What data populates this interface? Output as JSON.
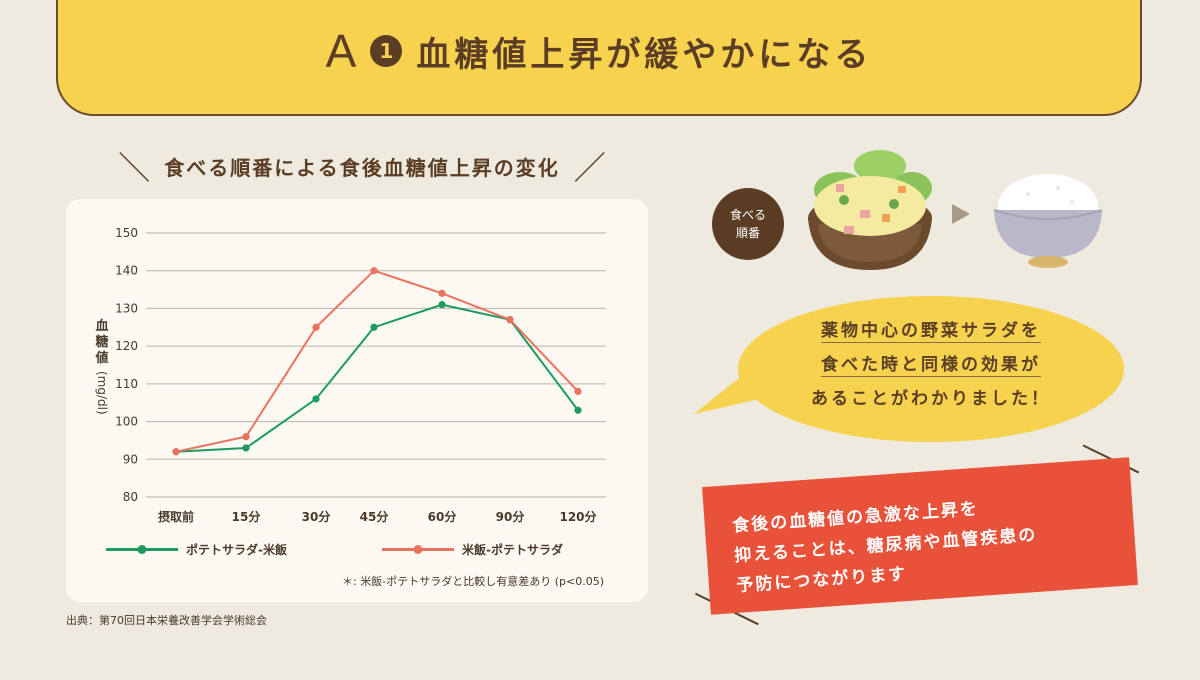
{
  "banner": {
    "letter": "A",
    "number": "1",
    "title": "血糖値上昇が緩やかになる"
  },
  "chart_heading": "食べる順番による食後血糖値上昇の変化",
  "chart_data": {
    "type": "line",
    "categories": [
      "摂取前",
      "15分",
      "30分",
      "45分",
      "60分",
      "90分",
      "120分"
    ],
    "ylabel": "血糖値",
    "yunit": "(mg/dl)",
    "ylim": [
      80,
      150
    ],
    "yticks": [
      80,
      90,
      100,
      110,
      120,
      130,
      140,
      150
    ],
    "grid": true,
    "series": [
      {
        "name": "ポテトサラダ-米飯",
        "color": "#1f9a5e",
        "values": [
          92,
          93,
          106,
          125,
          131,
          127,
          103
        ]
      },
      {
        "name": "米飯-ポテトサラダ",
        "color": "#ec7260",
        "values": [
          92,
          96,
          125,
          140,
          134,
          127,
          108
        ]
      }
    ],
    "note": "＊: 米飯-ポテトサラダと比較し有意差あり (p<0.05)"
  },
  "source": "出典：第70回日本栄養改善学会学術総会",
  "order_badge": [
    "食べる",
    "順番"
  ],
  "bubble_lines": [
    "薬物中心の野菜サラダを",
    "食べた時と同様の効果が",
    "あることがわかりました！"
  ],
  "red_note_lines": [
    "食後の血糖値の急激な上昇を",
    "抑えることは、糖尿病や血管疾患の",
    "予防につながります"
  ],
  "colors": {
    "background": "#eeeadf",
    "banner": "#f6d24e",
    "brown": "#5a3d24",
    "red": "#e8513a"
  }
}
